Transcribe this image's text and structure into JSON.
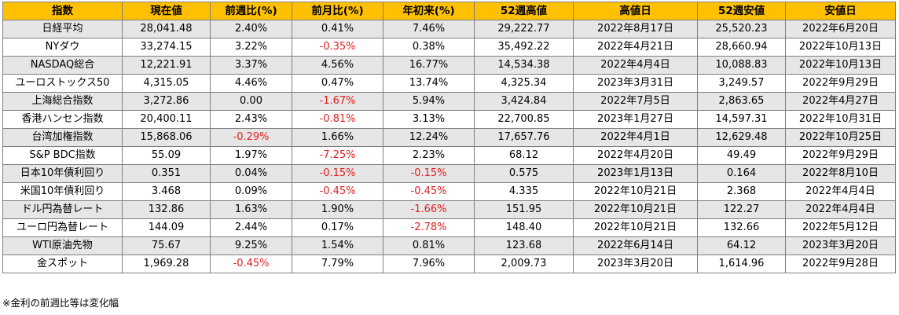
{
  "headers": [
    "指数",
    "現在値",
    "前週比(%)",
    "前月比(%)",
    "年初来(%)",
    "52週高値",
    "高値日",
    "52週安値",
    "安値日"
  ],
  "rows": [
    {
      "name": "日経平均",
      "current": "28,041.48",
      "wow": "2.40%",
      "mom": "0.41%",
      "ytd": "7.46%",
      "high52": "29,222.77",
      "high_date": "2022年8月17日",
      "low52": "25,520.23",
      "low_date": "2022年6月20日"
    },
    {
      "name": "NYダウ",
      "current": "33,274.15",
      "wow": "3.22%",
      "mom": "-0.35%",
      "ytd": "0.38%",
      "high52": "35,492.22",
      "high_date": "2022年4月21日",
      "low52": "28,660.94",
      "low_date": "2022年10月13日"
    },
    {
      "name": "NASDAQ総合",
      "current": "12,221.91",
      "wow": "3.37%",
      "mom": "4.56%",
      "ytd": "16.77%",
      "high52": "14,534.38",
      "high_date": "2022年4月4日",
      "low52": "10,088.83",
      "low_date": "2022年10月13日"
    },
    {
      "name": "ユーロストックス50",
      "current": "4,315.05",
      "wow": "4.46%",
      "mom": "0.47%",
      "ytd": "13.74%",
      "high52": "4,325.34",
      "high_date": "2023年3月31日",
      "low52": "3,249.57",
      "low_date": "2022年9月29日"
    },
    {
      "name": "上海総合指数",
      "current": "3,272.86",
      "wow": "0.00",
      "mom": "-1.67%",
      "ytd": "5.94%",
      "high52": "3,424.84",
      "high_date": "2022年7月5日",
      "low52": "2,863.65",
      "low_date": "2022年4月27日"
    },
    {
      "name": "香港ハンセン指数",
      "current": "20,400.11",
      "wow": "2.43%",
      "mom": "-0.81%",
      "ytd": "3.13%",
      "high52": "22,700.85",
      "high_date": "2023年1月27日",
      "low52": "14,597.31",
      "low_date": "2022年10月31日"
    },
    {
      "name": "台湾加権指数",
      "current": "15,868.06",
      "wow": "-0.29%",
      "mom": "1.66%",
      "ytd": "12.24%",
      "high52": "17,657.76",
      "high_date": "2022年4月1日",
      "low52": "12,629.48",
      "low_date": "2022年10月25日"
    },
    {
      "name": "S&P BDC指数",
      "current": "55.09",
      "wow": "1.97%",
      "mom": "-7.25%",
      "ytd": "2.23%",
      "high52": "68.12",
      "high_date": "2022年4月20日",
      "low52": "49.49",
      "low_date": "2022年9月29日"
    },
    {
      "name": "日本10年債利回り",
      "current": "0.351",
      "wow": "0.04%",
      "mom": "-0.15%",
      "ytd": "-0.15%",
      "high52": "0.575",
      "high_date": "2023年1月13日",
      "low52": "0.164",
      "low_date": "2022年8月10日"
    },
    {
      "name": "米国10年債利回り",
      "current": "3.468",
      "wow": "0.09%",
      "mom": "-0.45%",
      "ytd": "-0.45%",
      "high52": "4.335",
      "high_date": "2022年10月21日",
      "low52": "2.368",
      "low_date": "2022年4月4日"
    },
    {
      "name": "ドル円為替レート",
      "current": "132.86",
      "wow": "1.63%",
      "mom": "1.90%",
      "ytd": "-1.66%",
      "high52": "151.95",
      "high_date": "2022年10月21日",
      "low52": "122.27",
      "low_date": "2022年4月4日"
    },
    {
      "name": "ユーロ円為替レート",
      "current": "144.09",
      "wow": "2.44%",
      "mom": "0.17%",
      "ytd": "-2.78%",
      "high52": "148.40",
      "high_date": "2022年10月21日",
      "low52": "132.66",
      "low_date": "2022年5月12日"
    },
    {
      "name": "WTI原油先物",
      "current": "75.67",
      "wow": "9.25%",
      "mom": "1.54%",
      "ytd": "0.81%",
      "high52": "123.68",
      "high_date": "2022年6月14日",
      "low52": "64.12",
      "low_date": "2023年3月20日"
    },
    {
      "name": "金スポット",
      "current": "1,969.28",
      "wow": "-0.45%",
      "mom": "7.79%",
      "ytd": "7.96%",
      "high52": "2,009.73",
      "high_date": "2023年3月20日",
      "low52": "1,614.96",
      "low_date": "2022年9月28日"
    }
  ],
  "footnote": "※金利の前週比等は変化幅",
  "colors": {
    "header_bg": "#ffc000",
    "odd_row_bg": "#e6e6e6",
    "even_row_bg": "#ffffff",
    "negative_text": "#e02020",
    "border": "#7f7f7f"
  }
}
